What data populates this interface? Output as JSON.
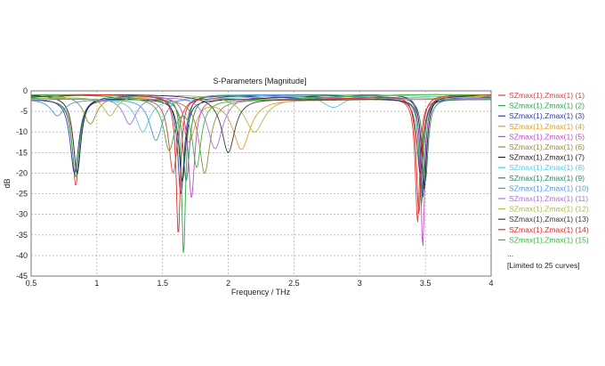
{
  "chart_data": {
    "type": "line",
    "title": "S-Parameters [Magnitude]",
    "xlabel": "Frequency / THz",
    "ylabel": "dB",
    "xlim": [
      0.5,
      4
    ],
    "ylim": [
      -45,
      0
    ],
    "x_ticks": [
      "0.5",
      "1",
      "1.5",
      "2",
      "2.5",
      "3",
      "3.5",
      "4"
    ],
    "y_ticks": [
      "0",
      "-5",
      "-10",
      "-15",
      "-20",
      "-25",
      "-30",
      "-35",
      "-40",
      "-45"
    ],
    "grid": true,
    "legend_position": "right",
    "legend_more": "...",
    "legend_note": "[Limited to 25 curves]",
    "series": [
      {
        "name": "SZmax(1),Zmax(1) (1)",
        "color": "#e0403c",
        "dips": [
          [
            0.84,
            -23,
            0.03
          ],
          [
            1.58,
            -20,
            0.04
          ],
          [
            3.44,
            -32,
            0.02
          ]
        ]
      },
      {
        "name": "SZmax(1),Zmax(1) (2)",
        "color": "#2aa84a",
        "dips": [
          [
            0.84,
            -21,
            0.035
          ],
          [
            1.66,
            -40,
            0.018
          ],
          [
            3.47,
            -28,
            0.02
          ]
        ]
      },
      {
        "name": "SZmax(1),Zmax(1) (3)",
        "color": "#2b3aa8",
        "dips": [
          [
            0.83,
            -20,
            0.04
          ],
          [
            1.64,
            -25,
            0.03
          ],
          [
            3.48,
            -26,
            0.022
          ]
        ]
      },
      {
        "name": "SZmax(1),Zmax(1) (4)",
        "color": "#e89a2c",
        "dips": [
          [
            2.1,
            -14,
            0.08
          ],
          [
            1.7,
            -12,
            0.06
          ]
        ]
      },
      {
        "name": "SZmax(1),Zmax(1) (5)",
        "color": "#c04ac8",
        "dips": [
          [
            1.72,
            -26,
            0.03
          ],
          [
            3.48,
            -38,
            0.018
          ]
        ]
      },
      {
        "name": "SZmax(1),Zmax(1) (6)",
        "color": "#9a8a3a",
        "dips": [
          [
            1.82,
            -20,
            0.05
          ],
          [
            0.95,
            -8,
            0.06
          ]
        ]
      },
      {
        "name": "SZmax(1),Zmax(1) (7)",
        "color": "#222222",
        "dips": [
          [
            0.85,
            -20,
            0.035
          ],
          [
            1.65,
            -22,
            0.03
          ],
          [
            3.49,
            -24,
            0.025
          ]
        ]
      },
      {
        "name": "SZmax(1),Zmax(1) (8)",
        "color": "#5ac8e0",
        "dips": [
          [
            1.35,
            -10,
            0.06
          ],
          [
            2.8,
            -4,
            0.1
          ]
        ]
      },
      {
        "name": "SZmax(1),Zmax(1) (9)",
        "color": "#2a8a5a",
        "dips": [
          [
            1.68,
            -22,
            0.03
          ],
          [
            3.5,
            -22,
            0.025
          ]
        ]
      },
      {
        "name": "SZmax(1),Zmax(1) (10)",
        "color": "#4a9ad8",
        "dips": [
          [
            1.45,
            -12,
            0.06
          ],
          [
            0.7,
            -6,
            0.06
          ]
        ]
      },
      {
        "name": "SZmax(1),Zmax(1) (11)",
        "color": "#b070d8",
        "dips": [
          [
            1.9,
            -14,
            0.07
          ],
          [
            1.25,
            -8,
            0.06
          ]
        ]
      },
      {
        "name": "SZmax(1),Zmax(1) (12)",
        "color": "#a8c040",
        "dips": [
          [
            2.2,
            -10,
            0.09
          ],
          [
            1.1,
            -6,
            0.06
          ]
        ]
      },
      {
        "name": "SZmax(1),Zmax(1) (13)",
        "color": "#3a3a3a",
        "dips": [
          [
            2.0,
            -15,
            0.06
          ],
          [
            3.46,
            -20,
            0.03
          ]
        ]
      },
      {
        "name": "SZmax(1),Zmax(1) (14)",
        "color": "#e02828",
        "dips": [
          [
            1.62,
            -35,
            0.02
          ],
          [
            3.45,
            -30,
            0.022
          ]
        ]
      },
      {
        "name": "SZmax(1),Zmax(1) (15)",
        "color": "#38b838",
        "dips": [
          [
            1.55,
            -14,
            0.05
          ],
          [
            1.76,
            -18,
            0.04
          ]
        ]
      }
    ]
  }
}
